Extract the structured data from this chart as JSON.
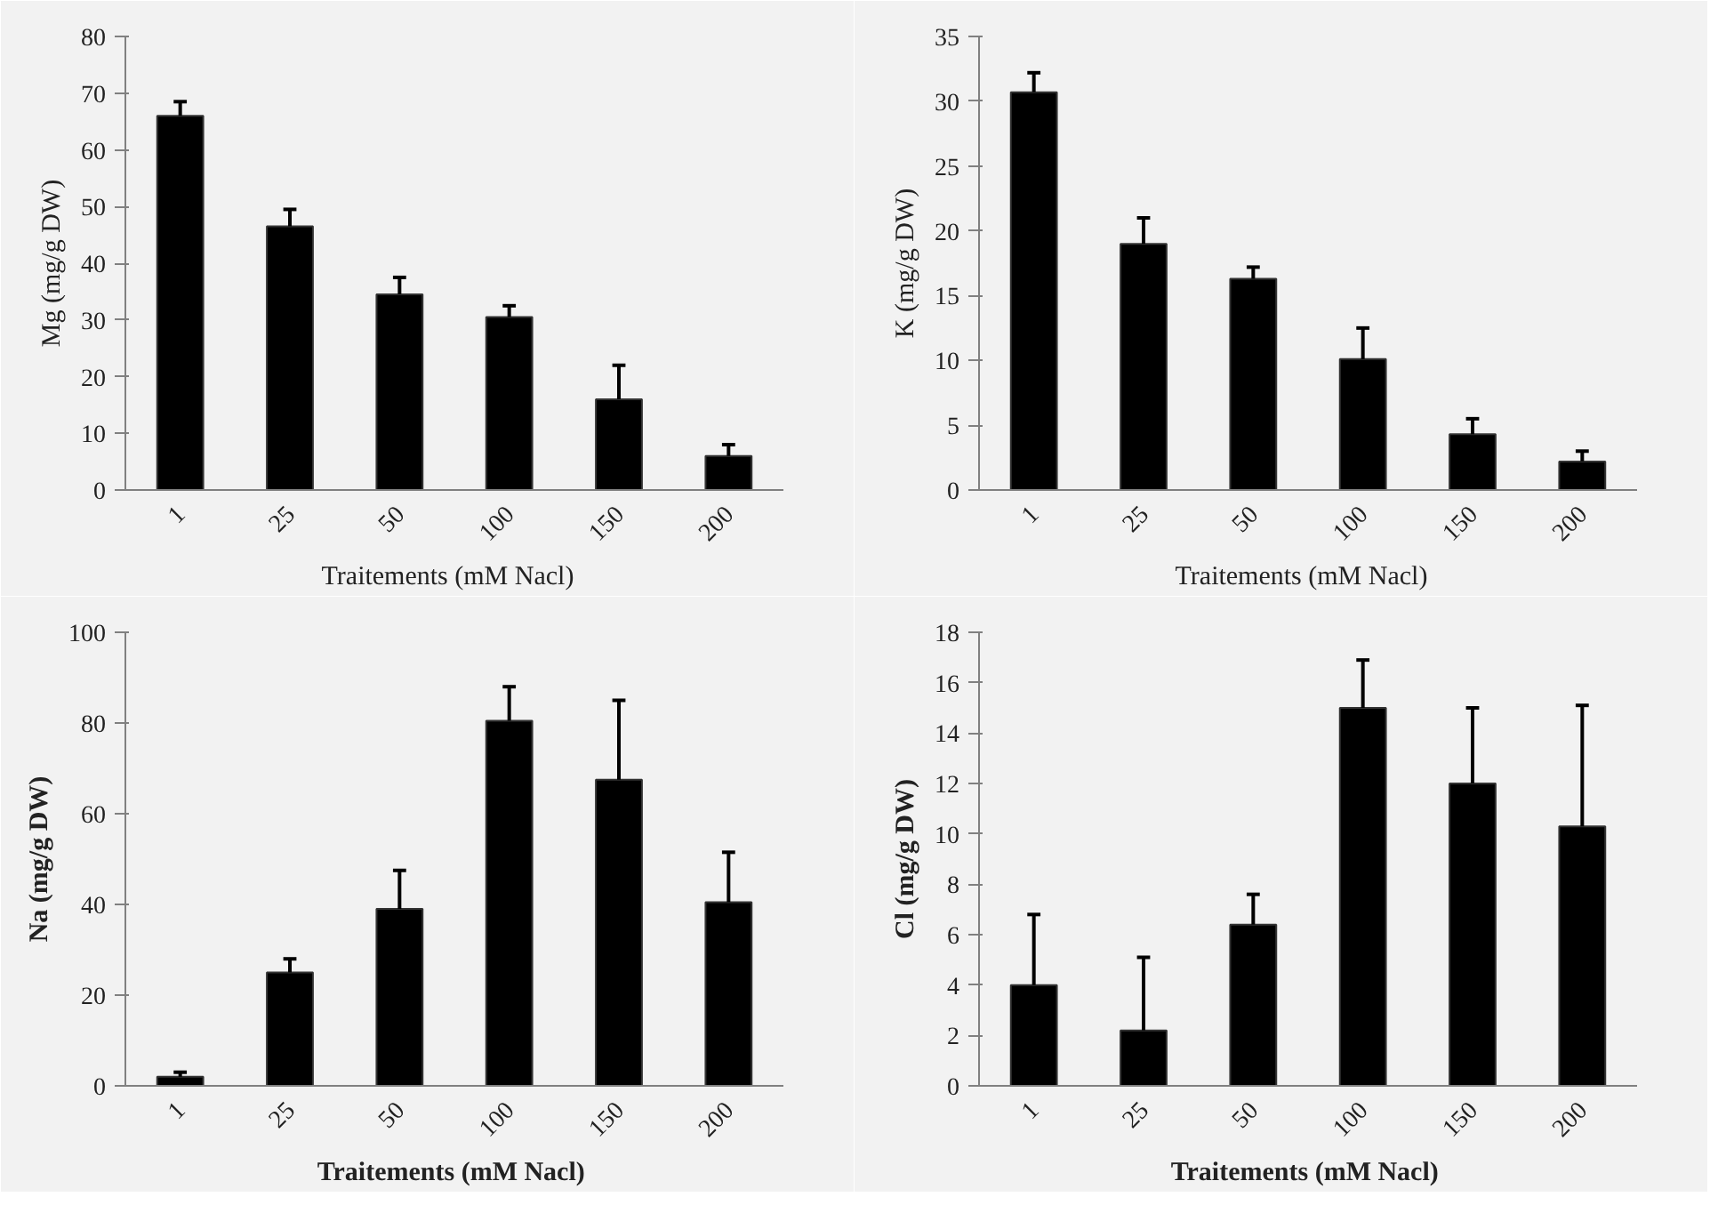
{
  "chart_data": [
    {
      "type": "bar",
      "categories": [
        "1",
        "25",
        "50",
        "100",
        "150",
        "200"
      ],
      "xlabel": "Traitements  (mM  Nacl)",
      "ylabel": "Mg (mg/g DW)",
      "values": [
        66,
        46.5,
        34.5,
        30.5,
        16,
        6
      ],
      "errors": [
        [
          66,
          68.5
        ],
        [
          46.5,
          49.5
        ],
        [
          34.5,
          37.5
        ],
        [
          30.5,
          32.5
        ],
        [
          16,
          22
        ],
        [
          6,
          8
        ]
      ],
      "color": "#000000",
      "ylim": [
        0,
        80
      ],
      "yticks": [
        0,
        10,
        20,
        30,
        40,
        50,
        60,
        70,
        80
      ],
      "grid": false
    },
    {
      "type": "bar",
      "categories": [
        "1",
        "25",
        "50",
        "100",
        "150",
        "200"
      ],
      "xlabel": "Traitements  (mM  Nacl)",
      "ylabel": "K (mg/g DW)",
      "values": [
        30.7,
        19,
        16.3,
        10.1,
        4.3,
        2.2
      ],
      "errors": [
        [
          30.7,
          32.2
        ],
        [
          19,
          21
        ],
        [
          16.3,
          17.2
        ],
        [
          10.1,
          12.5
        ],
        [
          4.3,
          5.5
        ],
        [
          2.2,
          3
        ]
      ],
      "color": "#000000",
      "ylim": [
        0,
        35
      ],
      "yticks": [
        0,
        5,
        10,
        15,
        20,
        25,
        30,
        35
      ],
      "grid": false
    },
    {
      "type": "bar",
      "categories": [
        "1",
        "25",
        "50",
        "100",
        "150",
        "200"
      ],
      "xlabel": "Traitements (mM  Nacl)",
      "ylabel": "Na (mg/g DW)",
      "values": [
        2,
        25,
        39,
        80.5,
        67.5,
        40.5
      ],
      "errors": [
        [
          2,
          3
        ],
        [
          25,
          28
        ],
        [
          39,
          47.5
        ],
        [
          80.5,
          88
        ],
        [
          67.5,
          85
        ],
        [
          40.5,
          51.5
        ]
      ],
      "color": "#000000",
      "ylim": [
        0,
        100
      ],
      "yticks": [
        0,
        20,
        40,
        60,
        80,
        100
      ],
      "grid": false
    },
    {
      "type": "bar",
      "categories": [
        "1",
        "25",
        "50",
        "100",
        "150",
        "200"
      ],
      "xlabel": "Traitements (mM  Nacl)",
      "ylabel": "Cl (mg/g DW)",
      "values": [
        4,
        2.2,
        6.4,
        15,
        12,
        10.3
      ],
      "errors": [
        [
          4,
          6.8
        ],
        [
          2.2,
          5.1
        ],
        [
          6.4,
          7.6
        ],
        [
          15,
          16.9
        ],
        [
          12,
          15
        ],
        [
          10.3,
          15.1
        ]
      ],
      "color": "#000000",
      "ylim": [
        0,
        18
      ],
      "yticks": [
        0,
        2,
        4,
        6,
        8,
        10,
        12,
        14,
        16,
        18
      ],
      "grid": false
    }
  ]
}
